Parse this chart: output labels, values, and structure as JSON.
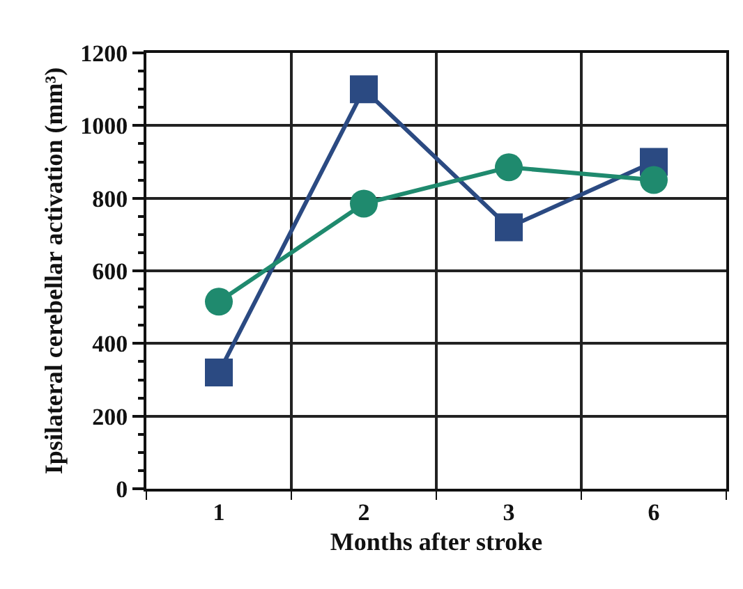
{
  "chart_data": {
    "type": "line",
    "xlabel": "Months after stroke",
    "ylabel": "Ipsilateral cerebellar activation (mm³)",
    "categories": [
      "1",
      "2",
      "3",
      "6"
    ],
    "series": [
      {
        "color": "#2b4a82",
        "marker": "square",
        "values": [
          320,
          1100,
          720,
          900
        ]
      },
      {
        "color": "#1f8a6e",
        "marker": "circle",
        "values": [
          515,
          785,
          885,
          850
        ]
      }
    ],
    "ylim": [
      0,
      1200
    ],
    "yticks": [
      0,
      200,
      400,
      600,
      800,
      1000,
      1200
    ],
    "grid": true,
    "line_style": "solid"
  }
}
